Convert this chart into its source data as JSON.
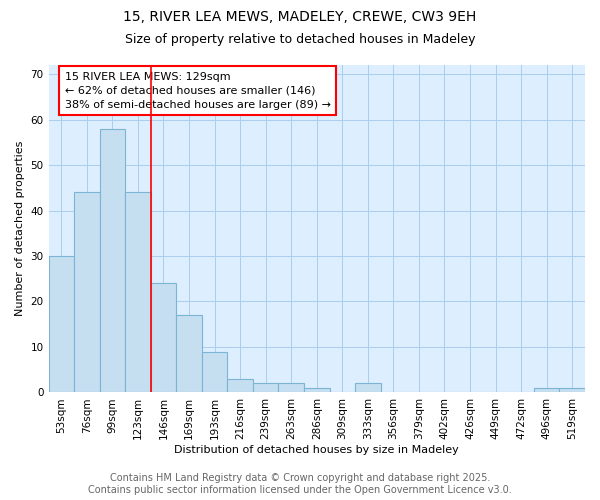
{
  "title1": "15, RIVER LEA MEWS, MADELEY, CREWE, CW3 9EH",
  "title2": "Size of property relative to detached houses in Madeley",
  "xlabel": "Distribution of detached houses by size in Madeley",
  "ylabel": "Number of detached properties",
  "categories": [
    "53sqm",
    "76sqm",
    "99sqm",
    "123sqm",
    "146sqm",
    "169sqm",
    "193sqm",
    "216sqm",
    "239sqm",
    "263sqm",
    "286sqm",
    "309sqm",
    "333sqm",
    "356sqm",
    "379sqm",
    "402sqm",
    "426sqm",
    "449sqm",
    "472sqm",
    "496sqm",
    "519sqm"
  ],
  "values": [
    30,
    44,
    58,
    44,
    24,
    17,
    9,
    3,
    2,
    2,
    1,
    0,
    2,
    0,
    0,
    0,
    0,
    0,
    0,
    1,
    1
  ],
  "bar_color": "#c5dff0",
  "bar_edge_color": "#7cb4d4",
  "red_line_x": 3.5,
  "annotation_text_line1": "15 RIVER LEA MEWS: 129sqm",
  "annotation_text_line2": "← 62% of detached houses are smaller (146)",
  "annotation_text_line3": "38% of semi-detached houses are larger (89) →",
  "ylim": [
    0,
    72
  ],
  "yticks": [
    0,
    10,
    20,
    30,
    40,
    50,
    60,
    70
  ],
  "footer1": "Contains HM Land Registry data © Crown copyright and database right 2025.",
  "footer2": "Contains public sector information licensed under the Open Government Licence v3.0.",
  "bg_color": "#ffffff",
  "plot_bg_color": "#ddeeff",
  "grid_color": "#aaccee",
  "title_fontsize": 10,
  "subtitle_fontsize": 9,
  "axis_label_fontsize": 8,
  "tick_fontsize": 7.5,
  "annotation_fontsize": 8,
  "footer_fontsize": 7
}
